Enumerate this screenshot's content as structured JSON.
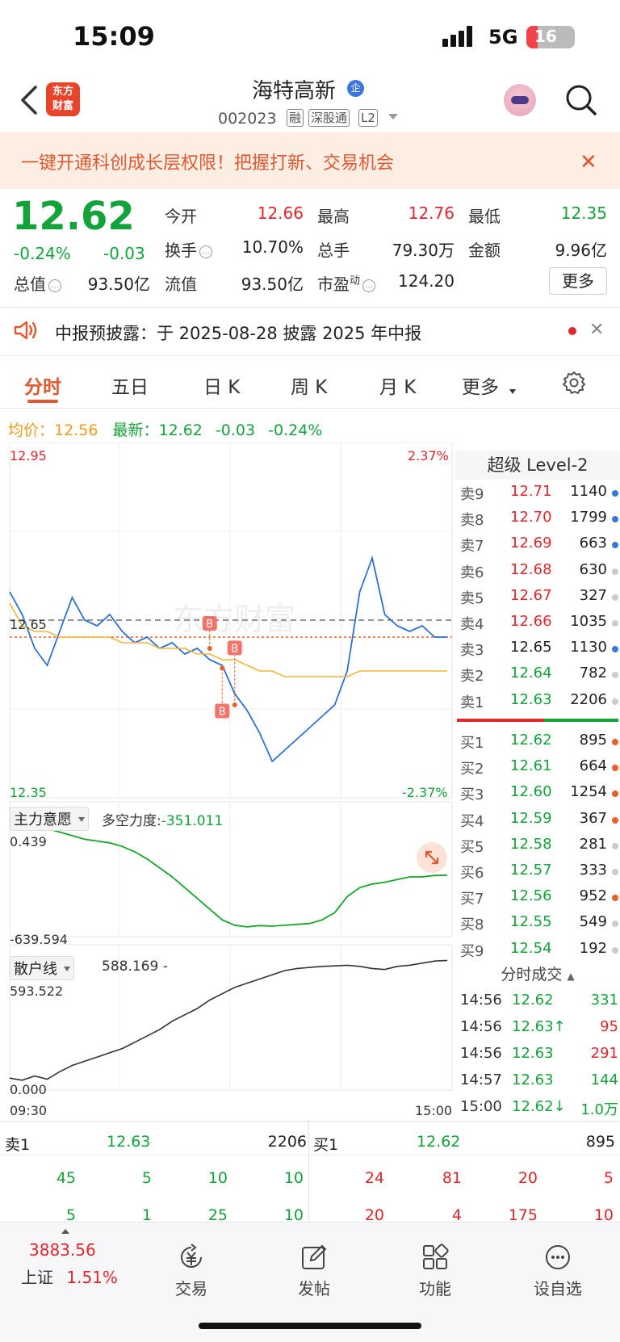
{
  "status": {
    "time": "15:09",
    "network": "5G",
    "battery": "16"
  },
  "header": {
    "logo": "东方\n财富",
    "stock_name": "海特高新",
    "badge": "企",
    "code": "002023",
    "tags": [
      "融",
      "深股通",
      "L2"
    ]
  },
  "banner": {
    "text": "一键开通科创成长层权限！把握打新、交易机会",
    "close": "✕"
  },
  "quote": {
    "price": "12.62",
    "pct": "-0.24%",
    "change": "-0.03",
    "stats": [
      {
        "label": "今开",
        "value": "12.66",
        "color": "red"
      },
      {
        "label": "最高",
        "value": "12.76",
        "color": "red"
      },
      {
        "label": "最低",
        "value": "12.35",
        "color": "green"
      },
      {
        "label": "换手",
        "value": "10.70%",
        "color": "plain"
      },
      {
        "label": "总手",
        "value": "79.30万",
        "color": "plain"
      },
      {
        "label": "金额",
        "value": "9.96亿",
        "color": "plain"
      },
      {
        "label": "总值",
        "value": "93.50亿",
        "color": "plain"
      },
      {
        "label": "流值",
        "value": "93.50亿",
        "color": "plain"
      },
      {
        "label": "市盈",
        "value": "124.20",
        "color": "plain"
      }
    ],
    "pe_sup": "动",
    "more_button": "更多"
  },
  "notice": {
    "text": "中报预披露：于 2025-08-28 披露 2025 年中报",
    "close": "✕"
  },
  "tabs": [
    {
      "label": "分时"
    },
    {
      "label": "五日"
    },
    {
      "label": "日 K"
    },
    {
      "label": "周 K"
    },
    {
      "label": "月 K"
    },
    {
      "label": "更多"
    }
  ],
  "avg_row": {
    "avg_label": "均价：",
    "avg_value": "12.56",
    "latest_label": "最新：",
    "latest_value": "12.62",
    "change": "-0.03",
    "pct": "-0.24%"
  },
  "chart_labels": {
    "top_price": "12.95",
    "top_pct": "2.37%",
    "bottom_price": "12.35",
    "bottom_pct": "-2.37%",
    "mid_price": "12.65",
    "time_start": "09:30",
    "time_end": "15:00",
    "watermark": "东方财富",
    "trade_marker": "B"
  },
  "indicator1": {
    "name": "主力意愿",
    "desc": "多空力度:",
    "value": "-351.011",
    "top": "0.439",
    "bottom": "-639.594"
  },
  "indicator2": {
    "name": "散户线",
    "value": "588.169 -",
    "top": "593.522",
    "bottom": "0.000"
  },
  "chart_data": {
    "type": "line",
    "x_range": [
      "09:30",
      "15:00"
    ],
    "ylim": [
      12.35,
      12.95
    ],
    "reference_line": 12.65,
    "previous_close": 12.65,
    "series": [
      {
        "name": "最新",
        "values": [
          12.7,
          12.66,
          12.6,
          12.57,
          12.63,
          12.69,
          12.65,
          12.64,
          12.66,
          12.63,
          12.61,
          12.62,
          12.6,
          12.61,
          12.59,
          12.6,
          12.58,
          12.57,
          12.52,
          12.49,
          12.45,
          12.4,
          12.42,
          12.44,
          12.46,
          12.48,
          12.5,
          12.56,
          12.7,
          12.76,
          12.66,
          12.64,
          12.63,
          12.64,
          12.62,
          12.62
        ]
      },
      {
        "name": "均价",
        "values": [
          12.68,
          12.64,
          12.63,
          12.63,
          12.62,
          12.62,
          12.62,
          12.62,
          12.62,
          12.61,
          12.61,
          12.61,
          12.6,
          12.6,
          12.6,
          12.59,
          12.59,
          12.58,
          12.58,
          12.57,
          12.56,
          12.56,
          12.55,
          12.55,
          12.55,
          12.55,
          12.55,
          12.55,
          12.56,
          12.56,
          12.56,
          12.56,
          12.56,
          12.56,
          12.56,
          12.56
        ]
      }
    ],
    "indicator1_values": [
      0.0,
      -40,
      -60,
      -90,
      -110,
      -130,
      -150,
      -160,
      -170,
      -190,
      -220,
      -260,
      -310,
      -360,
      -420,
      -480,
      -540,
      -600,
      -630,
      -639,
      -632,
      -635,
      -630,
      -625,
      -620,
      -600,
      -560,
      -470,
      -420,
      -400,
      -390,
      -375,
      -360,
      -360,
      -352,
      -351
    ],
    "indicator1_range": [
      -639.594,
      0.439
    ],
    "indicator2_values": [
      30,
      20,
      40,
      25,
      60,
      90,
      110,
      130,
      150,
      170,
      200,
      230,
      260,
      300,
      330,
      360,
      400,
      430,
      460,
      480,
      500,
      520,
      540,
      550,
      555,
      560,
      562,
      565,
      560,
      550,
      545,
      560,
      565,
      575,
      585,
      588
    ],
    "indicator2_range": [
      0,
      593.522
    ]
  },
  "orderbook": {
    "title": "超级 Level-2",
    "asks": [
      {
        "label": "卖9",
        "price": "12.71",
        "vol": "1140",
        "pc": "red",
        "dot": "#3a78e0"
      },
      {
        "label": "卖8",
        "price": "12.70",
        "vol": "1799",
        "pc": "red",
        "dot": "#3a78e0"
      },
      {
        "label": "卖7",
        "price": "12.69",
        "vol": "663",
        "pc": "red",
        "dot": "#3a78e0"
      },
      {
        "label": "卖6",
        "price": "12.68",
        "vol": "630",
        "pc": "red",
        "dot": "#cccccc"
      },
      {
        "label": "卖5",
        "price": "12.67",
        "vol": "327",
        "pc": "red",
        "dot": "#cccccc"
      },
      {
        "label": "卖4",
        "price": "12.66",
        "vol": "1035",
        "pc": "red",
        "dot": "#cccccc"
      },
      {
        "label": "卖3",
        "price": "12.65",
        "vol": "1130",
        "pc": "plain",
        "dot": "#3a78e0"
      },
      {
        "label": "卖2",
        "price": "12.64",
        "vol": "782",
        "pc": "green",
        "dot": "#cccccc"
      },
      {
        "label": "卖1",
        "price": "12.63",
        "vol": "2206",
        "pc": "green",
        "dot": "#cccccc"
      }
    ],
    "bids": [
      {
        "label": "买1",
        "price": "12.62",
        "vol": "895",
        "pc": "green",
        "dot": "#e8602c"
      },
      {
        "label": "买2",
        "price": "12.61",
        "vol": "664",
        "pc": "green",
        "dot": "#e8602c"
      },
      {
        "label": "买3",
        "price": "12.60",
        "vol": "1254",
        "pc": "green",
        "dot": "#e8602c"
      },
      {
        "label": "买4",
        "price": "12.59",
        "vol": "367",
        "pc": "green",
        "dot": "#e8602c"
      },
      {
        "label": "买5",
        "price": "12.58",
        "vol": "281",
        "pc": "green",
        "dot": "#cccccc"
      },
      {
        "label": "买6",
        "price": "12.57",
        "vol": "333",
        "pc": "green",
        "dot": "#cccccc"
      },
      {
        "label": "买7",
        "price": "12.56",
        "vol": "952",
        "pc": "green",
        "dot": "#e8602c"
      },
      {
        "label": "买8",
        "price": "12.55",
        "vol": "549",
        "pc": "green",
        "dot": "#cccccc"
      },
      {
        "label": "买9",
        "price": "12.54",
        "vol": "192",
        "pc": "green",
        "dot": "#cccccc"
      }
    ]
  },
  "trades": {
    "title": "分时成交",
    "rows": [
      {
        "time": "14:56",
        "price": "12.62",
        "vol": "331",
        "pc": "green",
        "vc": "green"
      },
      {
        "time": "14:56",
        "price": "12.63↑",
        "vol": "95",
        "pc": "green",
        "vc": "red"
      },
      {
        "time": "14:56",
        "price": "12.63",
        "vol": "291",
        "pc": "green",
        "vc": "red"
      },
      {
        "time": "14:57",
        "price": "12.63",
        "vol": "144",
        "pc": "green",
        "vc": "green"
      },
      {
        "time": "15:00",
        "price": "12.62↓",
        "vol": "1.0万",
        "pc": "green",
        "vc": "green"
      }
    ]
  },
  "band": {
    "sell_label": "卖1",
    "sell_price": "12.63",
    "sell_vol": "2206",
    "buy_label": "买1",
    "buy_price": "12.62",
    "buy_vol": "895",
    "sell_row1": [
      "45",
      "5",
      "10",
      "10"
    ],
    "buy_row1": [
      "24",
      "81",
      "20",
      "5"
    ],
    "sell_row2": [
      "5",
      "1",
      "25",
      "10"
    ],
    "buy_row2": [
      "20",
      "4",
      "175",
      "10"
    ]
  },
  "bottom_nav": {
    "index_value": "3883.56",
    "index_name": "上证",
    "index_pct": "1.51%",
    "items": [
      {
        "label": "交易"
      },
      {
        "label": "发帖"
      },
      {
        "label": "功能"
      },
      {
        "label": "设自选"
      }
    ]
  }
}
